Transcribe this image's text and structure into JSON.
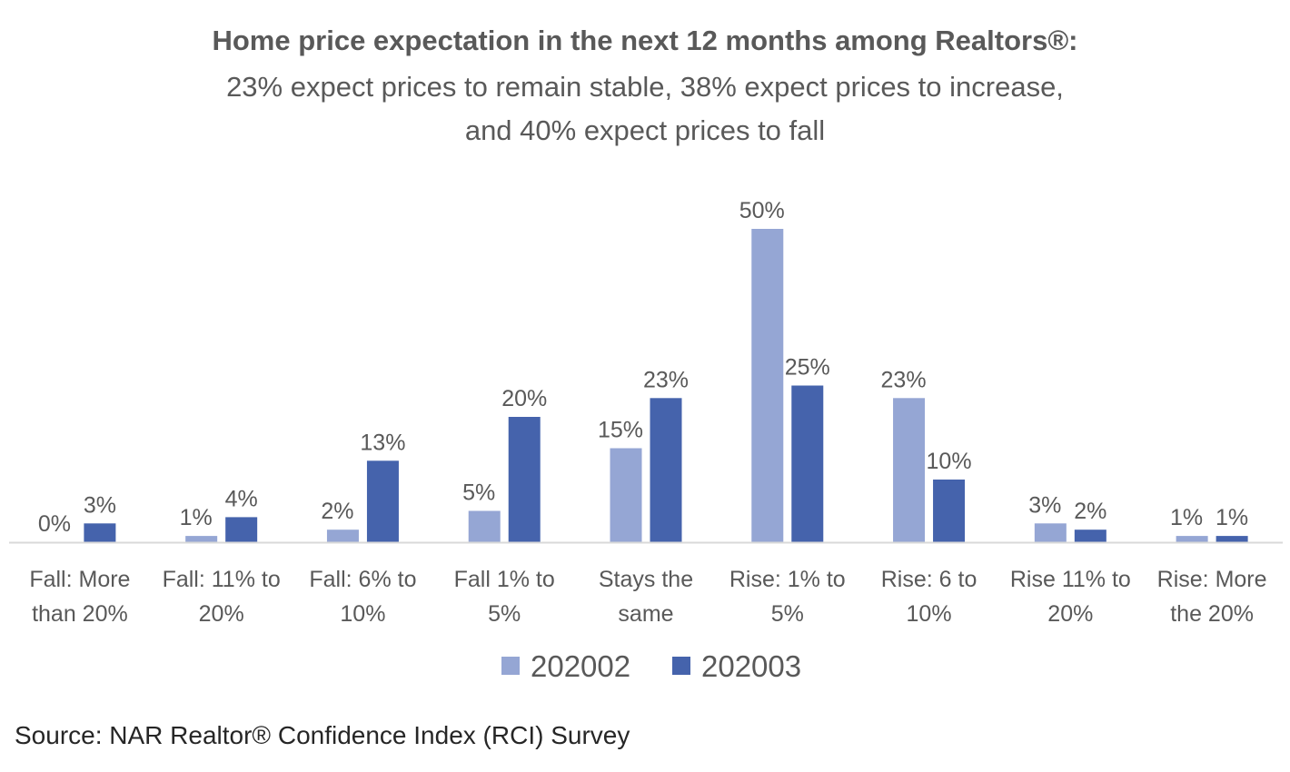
{
  "title": "Home price expectation in the next 12 months among Realtors®:",
  "subtitle_lines": [
    "23% expect prices to remain stable, 38% expect prices to increase,",
    "and 40% expect prices to fall"
  ],
  "source": "Source: NAR Realtor® Confidence Index (RCI) Survey",
  "colors": {
    "series1": "#95A6D4",
    "series2": "#4563AC",
    "axis": "#D9D9D9",
    "text": "#595959"
  },
  "chart_data": {
    "type": "bar",
    "title": "Home price expectation in the next 12 months among Realtors®:",
    "categories": [
      [
        "Fall: More",
        "than 20%"
      ],
      [
        "Fall: 11% to",
        "20%"
      ],
      [
        "Fall: 6% to",
        "10%"
      ],
      [
        "Fall 1% to",
        "5%"
      ],
      [
        "Stays the",
        "same"
      ],
      [
        "Rise: 1% to",
        "5%"
      ],
      [
        "Rise: 6 to",
        "10%"
      ],
      [
        "Rise 11% to",
        "20%"
      ],
      [
        "Rise: More",
        "the 20%"
      ]
    ],
    "series": [
      {
        "name": "202002",
        "values": [
          0,
          1,
          2,
          5,
          15,
          50,
          23,
          3,
          1
        ],
        "labels": [
          "0%",
          "1%",
          "2%",
          "5%",
          "15%",
          "50%",
          "23%",
          "3%",
          "1%"
        ]
      },
      {
        "name": "202003",
        "values": [
          3,
          4,
          13,
          20,
          23,
          25,
          10,
          2,
          1
        ],
        "labels": [
          "3%",
          "4%",
          "13%",
          "20%",
          "23%",
          "25%",
          "10%",
          "2%",
          "1%"
        ]
      }
    ],
    "ylim": [
      0,
      50
    ],
    "grid": false,
    "legend": "bottom",
    "xlabel": "",
    "ylabel": ""
  }
}
